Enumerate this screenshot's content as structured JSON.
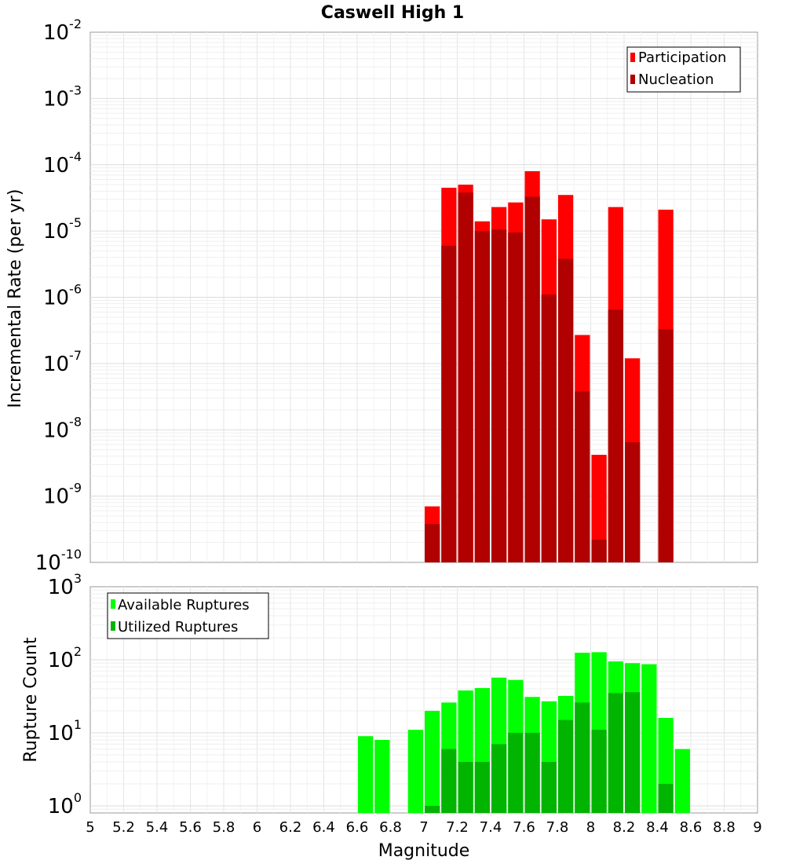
{
  "chart_data": [
    {
      "type": "bar",
      "title": "Caswell High 1",
      "ylabel": "Incremental Rate (per yr)",
      "yscale": "log",
      "ylim": [
        1e-10,
        0.01
      ],
      "xlim": [
        5,
        9
      ],
      "y_tick_exponents": [
        "-10",
        "-9",
        "-8",
        "-7",
        "-6",
        "-5",
        "-4",
        "-3",
        "-2"
      ],
      "legend_position": "top-right",
      "bin_centers": [
        7.05,
        7.15,
        7.25,
        7.35,
        7.45,
        7.55,
        7.65,
        7.75,
        7.85,
        7.95,
        8.05,
        8.15,
        8.25,
        8.35,
        8.45
      ],
      "series": [
        {
          "name": "Participation",
          "color": "#ff0000",
          "values": [
            7e-10,
            4.5e-05,
            5e-05,
            1.4e-05,
            2.3e-05,
            2.7e-05,
            8e-05,
            1.5e-05,
            3.5e-05,
            2.7e-07,
            4.2e-09,
            2.3e-05,
            1.2e-07,
            null,
            2.1e-05
          ]
        },
        {
          "name": "Nucleation",
          "color": "#b00000",
          "values": [
            3.8e-10,
            6e-06,
            3.8e-05,
            1e-05,
            1.05e-05,
            9.5e-06,
            3.3e-05,
            1.1e-06,
            3.8e-06,
            3.8e-08,
            2.2e-10,
            6.5e-07,
            6.5e-09,
            null,
            3.3e-07
          ]
        }
      ]
    },
    {
      "type": "bar",
      "xlabel": "Magnitude",
      "ylabel": "Rupture Count",
      "yscale": "log",
      "ylim": [
        0.8,
        1000
      ],
      "xlim": [
        5,
        9
      ],
      "y_tick_exponents": [
        "0",
        "1",
        "2",
        "3"
      ],
      "x_ticks": [
        "5",
        "5.2",
        "5.4",
        "5.6",
        "5.8",
        "6",
        "6.2",
        "6.4",
        "6.6",
        "6.8",
        "7",
        "7.2",
        "7.4",
        "7.6",
        "7.8",
        "8",
        "8.2",
        "8.4",
        "8.6",
        "8.8",
        "9"
      ],
      "legend_position": "top-left",
      "bin_centers": [
        6.65,
        6.75,
        6.85,
        6.95,
        7.05,
        7.15,
        7.25,
        7.35,
        7.45,
        7.55,
        7.65,
        7.75,
        7.85,
        7.95,
        8.05,
        8.15,
        8.25,
        8.35,
        8.45,
        8.55
      ],
      "series": [
        {
          "name": "Available Ruptures",
          "color": "#00ff00",
          "values": [
            9,
            8,
            null,
            11,
            20,
            26,
            38,
            41,
            57,
            53,
            31,
            27,
            32,
            125,
            127,
            95,
            90,
            87,
            16,
            6
          ]
        },
        {
          "name": "Utilized Ruptures",
          "color": "#00b400",
          "values": [
            null,
            null,
            null,
            null,
            1,
            6,
            4,
            4,
            7,
            10,
            10,
            4,
            15,
            26,
            11,
            35,
            36,
            null,
            2,
            null
          ]
        }
      ]
    }
  ]
}
